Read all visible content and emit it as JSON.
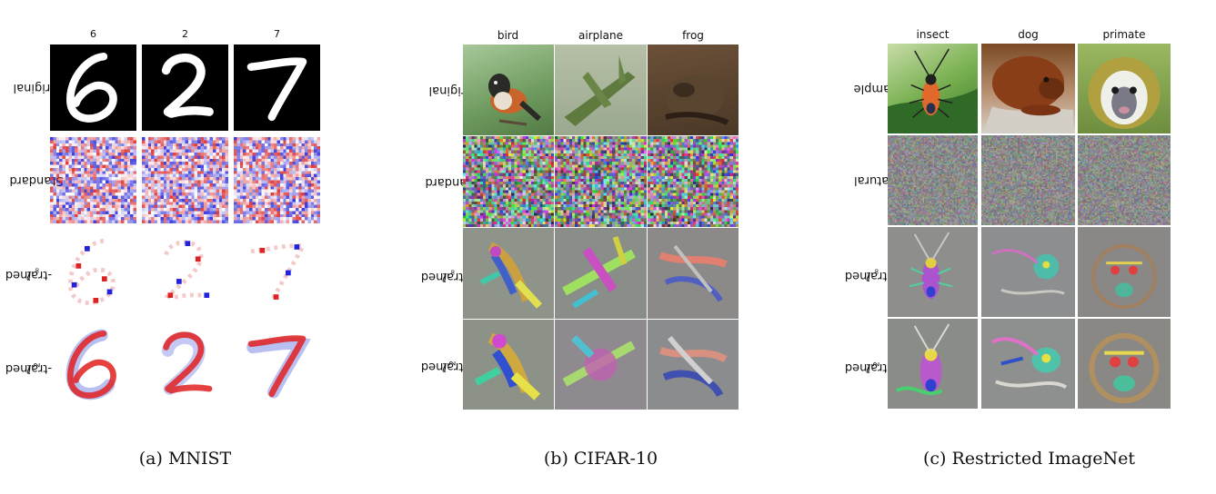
{
  "panels": [
    {
      "id": "mnist",
      "caption": "(a) MNIST",
      "columns": [
        "6",
        "2",
        "7"
      ],
      "rows": [
        {
          "prefix": "",
          "sub": "",
          "suffix": "Original"
        },
        {
          "prefix": "",
          "sub": "",
          "suffix": "Standard"
        },
        {
          "prefix": "ℓ",
          "sub": "∞",
          "suffix": "-trained"
        },
        {
          "prefix": "ℓ",
          "sub": "2",
          "suffix": "-trained"
        }
      ]
    },
    {
      "id": "cifar",
      "caption": "(b) CIFAR-10",
      "columns": [
        "bird",
        "airplane",
        "frog"
      ],
      "rows": [
        {
          "prefix": "",
          "sub": "",
          "suffix": "Original"
        },
        {
          "prefix": "",
          "sub": "",
          "suffix": "Standard"
        },
        {
          "prefix": "ℓ",
          "sub": "∞",
          "suffix": "-trained"
        },
        {
          "prefix": "ℓ",
          "sub": "2",
          "suffix": "-trained"
        }
      ]
    },
    {
      "id": "imagenet",
      "caption": "(c) Restricted ImageNet",
      "columns": [
        "insect",
        "dog",
        "primate"
      ],
      "rows": [
        {
          "prefix": "",
          "sub": "",
          "suffix": "Sample"
        },
        {
          "prefix": "",
          "sub": "",
          "suffix": "Natural"
        },
        {
          "prefix": "ℓ",
          "sub": "∞",
          "suffix": "-trained"
        },
        {
          "prefix": "ℓ",
          "sub": "2",
          "suffix": "-trained"
        }
      ]
    }
  ]
}
